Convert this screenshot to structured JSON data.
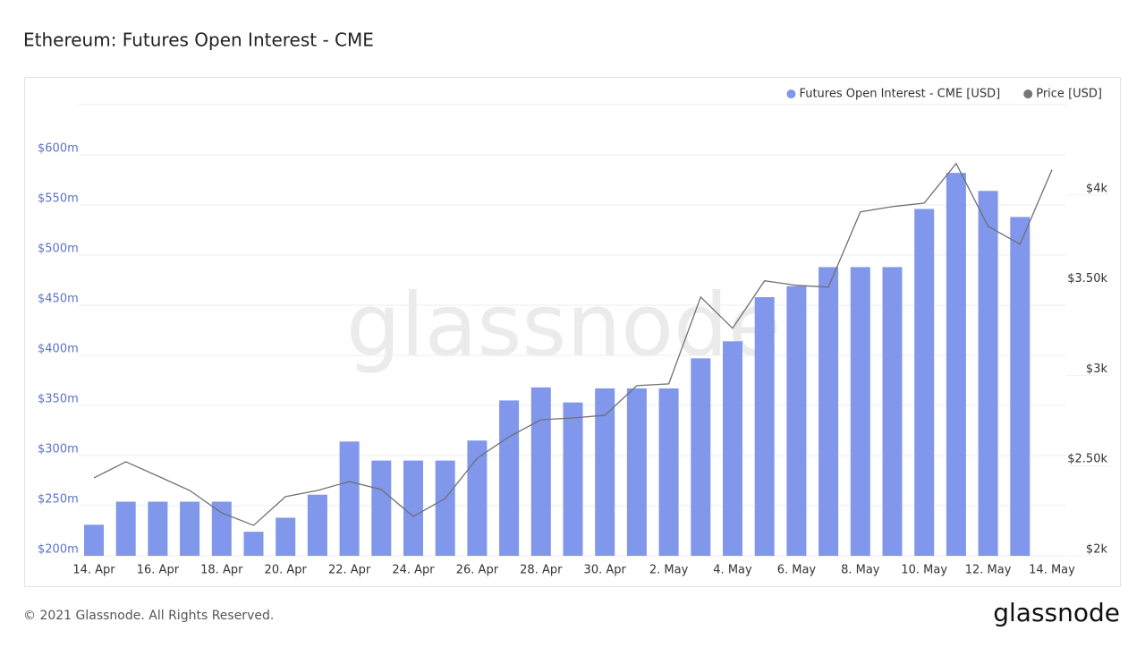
{
  "chart_data": {
    "type": "bar",
    "title": "Ethereum: Futures Open Interest - CME",
    "categories": [
      "14. Apr",
      null,
      "16. Apr",
      null,
      "18. Apr",
      null,
      "20. Apr",
      null,
      "22. Apr",
      null,
      "24. Apr",
      null,
      "26. Apr",
      null,
      "28. Apr",
      null,
      "30. Apr",
      null,
      "2. May",
      null,
      "4. May",
      null,
      "6. May",
      null,
      "8. May",
      null,
      "10. May",
      null,
      "12. May",
      null,
      "14. May"
    ],
    "series": [
      {
        "name": "Futures Open Interest - CME [USD]",
        "color": "#8097ec",
        "type": "bar",
        "values": [
          231000000,
          254000000,
          254000000,
          254000000,
          254000000,
          224000000,
          238000000,
          261000000,
          314000000,
          295000000,
          295000000,
          295000000,
          315000000,
          355000000,
          368000000,
          353000000,
          367000000,
          367000000,
          367000000,
          397000000,
          414000000,
          458000000,
          469000000,
          488000000,
          488000000,
          488000000,
          546000000,
          582000000,
          564000000,
          538000000,
          null
        ]
      },
      {
        "name": "Price [USD]",
        "color": "#707070",
        "type": "line",
        "axis": "y2",
        "values": [
          2432,
          2521,
          2442,
          2362,
          2238,
          2169,
          2328,
          2362,
          2412,
          2367,
          2218,
          2318,
          2541,
          2660,
          2754,
          2764,
          2779,
          2943,
          2953,
          3434,
          3261,
          3524,
          3499,
          3489,
          3906,
          3935,
          3955,
          4174,
          3826,
          3727,
          4139
        ]
      }
    ],
    "ylim": [
      200000000,
      650000000
    ],
    "yticks": [
      {
        "value": 200000000,
        "label": "$200m"
      },
      {
        "value": 250000000,
        "label": "$250m"
      },
      {
        "value": 300000000,
        "label": "$300m"
      },
      {
        "value": 350000000,
        "label": "$350m"
      },
      {
        "value": 400000000,
        "label": "$400m"
      },
      {
        "value": 450000000,
        "label": "$450m"
      },
      {
        "value": 500000000,
        "label": "$500m"
      },
      {
        "value": 550000000,
        "label": "$550m"
      },
      {
        "value": 600000000,
        "label": "$600m"
      }
    ],
    "y2lim": [
      2000,
      4500
    ],
    "y2ticks": [
      {
        "value": 2000,
        "label": "$2k"
      },
      {
        "value": 2500,
        "label": "$2.50k"
      },
      {
        "value": 3000,
        "label": "$3k"
      },
      {
        "value": 3500,
        "label": "$3.50k"
      },
      {
        "value": 4000,
        "label": "$4k"
      }
    ],
    "grid": true,
    "legend": "top-right",
    "watermark": "glassnode",
    "footer": "© 2021 Glassnode. All Rights Reserved.",
    "logo": "glassnode"
  }
}
